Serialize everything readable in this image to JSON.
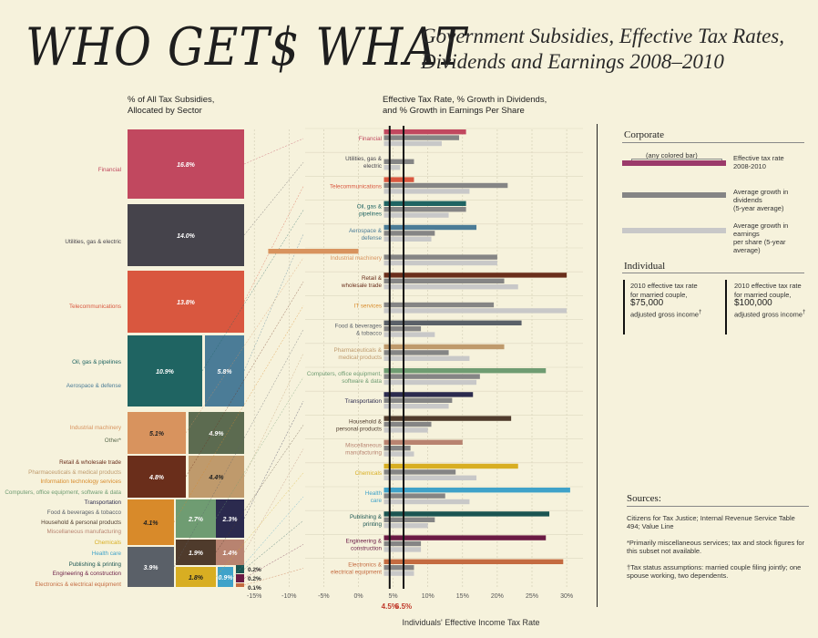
{
  "header": {
    "title": "WHO GET$ WHAT",
    "subtitle_line1": "Government Subsidies, Effective Tax Rates,",
    "subtitle_line2": "Dividends and Earnings 2008–2010"
  },
  "left_heading": {
    "line1": "% of All Tax Subsidies,",
    "line2": "Allocated by Sector"
  },
  "mid_heading": {
    "line1": "Effective Tax Rate, % Growth in Dividends,",
    "line2": "and % Growth in Earnings Per Share"
  },
  "colors": {
    "background": "#f6f2dc",
    "dividend_bar": "#858585",
    "earnings_bar": "#c8c8c8",
    "ref_line": "#111111"
  },
  "chart_data": [
    {
      "type": "treemap",
      "title": "% of All Tax Subsidies, Allocated by Sector",
      "cells": [
        {
          "sector": "Financial",
          "label": "Financial",
          "value": 16.8,
          "value_label": "16.8%",
          "color": "#c1485f"
        },
        {
          "sector": "Utilities, gas & electric",
          "label": "Utilities, gas & electric",
          "value": 14.0,
          "value_label": "14.0%",
          "color": "#45434b"
        },
        {
          "sector": "Telecommunications",
          "label": "Telecommunications",
          "value": 13.8,
          "value_label": "13.8%",
          "color": "#d9573f"
        },
        {
          "sector": "Oil, gas & pipelines",
          "label": "Oil, gas & pipelines",
          "value": 10.9,
          "value_label": "10.9%",
          "color": "#1f6462"
        },
        {
          "sector": "Aerospace & defense",
          "label": "Aerospace & defense",
          "value": 5.8,
          "value_label": "5.8%",
          "color": "#4b7c97"
        },
        {
          "sector": "Industrial machinery",
          "label": "Industrial machinery",
          "value": 5.1,
          "value_label": "5.1%",
          "color": "#d8935e"
        },
        {
          "sector": "Other*",
          "label": "Other*",
          "value": 4.9,
          "value_label": "4.9%",
          "color": "#5c6b50"
        },
        {
          "sector": "Retail & wholesale trade",
          "label": "Retail & wholesale trade",
          "value": 4.8,
          "value_label": "4.8%",
          "color": "#6a2e1b"
        },
        {
          "sector": "Pharmaceuticals & medical products",
          "label": "Pharmaceuticals & medical products",
          "value": 4.4,
          "value_label": "4.4%",
          "color": "#bf9a6c"
        },
        {
          "sector": "IT services",
          "label": "Information technology services",
          "value": 4.1,
          "value_label": "4.1%",
          "color": "#d88a2a"
        },
        {
          "sector": "Computers, office equipment, software & data",
          "label": "Computers, office equipment, software & data",
          "value": 2.7,
          "value_label": "2.7%",
          "color": "#6f9c72"
        },
        {
          "sector": "Transportation",
          "label": "Transportation",
          "value": 2.3,
          "value_label": "2.3%",
          "color": "#2b2a4e"
        },
        {
          "sector": "Food & beverages & tobacco",
          "label": "Food & beverages & tobacco",
          "value": 3.9,
          "value_label": "3.9%",
          "color": "#5a6068"
        },
        {
          "sector": "Household & personal products",
          "label": "Household & personal products",
          "value": 1.9,
          "value_label": "1.9%",
          "color": "#4f3b2c"
        },
        {
          "sector": "Miscellaneous manufacturing",
          "label": "Miscellaneous manufacturing",
          "value": 1.4,
          "value_label": "1.4%",
          "color": "#b88370"
        },
        {
          "sector": "Chemicals",
          "label": "Chemicals",
          "value": 1.8,
          "value_label": "1.8%",
          "color": "#d8ae22"
        },
        {
          "sector": "Health care",
          "label": "Health care",
          "value": 0.9,
          "value_label": "0.9%",
          "color": "#3fa2c9"
        },
        {
          "sector": "Publishing & printing",
          "label": "Publishing & printing",
          "value": 0.2,
          "value_label": "0.2%",
          "color": "#1b5552"
        },
        {
          "sector": "Engineering & construction",
          "label": "Engineering & construction",
          "value": 0.2,
          "value_label": "0.2%",
          "color": "#6a1a44"
        },
        {
          "sector": "Electronics & electrical equipment",
          "label": "Electronics & electrical equipment",
          "value": 0.1,
          "value_label": "0.1%",
          "color": "#c46b40"
        }
      ]
    },
    {
      "type": "bar",
      "orientation": "horizontal",
      "xlabel": "Individuals' Effective Income Tax Rate",
      "xlim": [
        -15,
        30
      ],
      "ticks": [
        "-15%",
        "-10%",
        "-5%",
        "0%",
        "5%",
        "10%",
        "15%",
        "20%",
        "25%",
        "30%"
      ],
      "reference_lines": [
        {
          "value": 4.5,
          "label": "4.5%",
          "color": "#c0392b"
        },
        {
          "value": 6.5,
          "label": "6.5%",
          "color": "#c0392b"
        }
      ],
      "series_names": [
        "Effective tax rate 2008-2010",
        "Average growth in dividends (5-year average)",
        "Average growth in earnings per share (5-year average)"
      ],
      "categories": [
        {
          "name": "Financial",
          "color": "#c1485f",
          "values": [
            15.5,
            14.5,
            12
          ]
        },
        {
          "name": "Utilities, gas & electric",
          "color": "#45434b",
          "values": [
            3.5,
            8,
            6
          ]
        },
        {
          "name": "Telecommunications",
          "color": "#d9573f",
          "values": [
            8,
            21.5,
            16
          ]
        },
        {
          "name": "Oil, gas & pipelines",
          "color": "#1f6462",
          "values": [
            15.5,
            15.5,
            13
          ]
        },
        {
          "name": "Aerospace & defense",
          "color": "#4b7c97",
          "values": [
            17,
            11,
            10.5
          ]
        },
        {
          "name": "Industrial machinery",
          "color": "#d8935e",
          "values": [
            -13,
            20,
            20
          ]
        },
        {
          "name": "Retail & wholesale trade",
          "color": "#6a2e1b",
          "values": [
            30,
            21,
            23
          ]
        },
        {
          "name": "IT services",
          "color": "#d88a2a",
          "values": [
            2.5,
            19.5,
            30
          ]
        },
        {
          "name": "Food & beverages & tobacco",
          "color": "#5a6068",
          "values": [
            23.5,
            9,
            11
          ]
        },
        {
          "name": "Pharmaceuticals & medical products",
          "color": "#bf9a6c",
          "values": [
            21,
            13,
            16
          ]
        },
        {
          "name": "Computers, office equipment, software & data",
          "color": "#6f9c72",
          "values": [
            27,
            17.5,
            17
          ]
        },
        {
          "name": "Transportation",
          "color": "#2b2a4e",
          "values": [
            16.5,
            13.5,
            13
          ]
        },
        {
          "name": "Household & personal products",
          "color": "#4f3b2c",
          "values": [
            22,
            10.5,
            10
          ]
        },
        {
          "name": "Miscellaneous manufacturing",
          "color": "#b88370",
          "values": [
            15,
            7.5,
            8
          ]
        },
        {
          "name": "Chemicals",
          "color": "#d8ae22",
          "values": [
            23,
            14,
            17
          ]
        },
        {
          "name": "Health care",
          "color": "#3fa2c9",
          "values": [
            30.5,
            12.5,
            16
          ]
        },
        {
          "name": "Publishing & printing",
          "color": "#1b5552",
          "values": [
            27.5,
            11,
            10
          ]
        },
        {
          "name": "Engineering & construction",
          "color": "#6a1a44",
          "values": [
            27,
            9,
            9
          ]
        },
        {
          "name": "Electronics & electrical equipment",
          "color": "#c46b40",
          "values": [
            29.5,
            8,
            8
          ]
        }
      ]
    }
  ],
  "row_labels": [
    [
      "Financial"
    ],
    [
      "Utilities, gas &",
      "electric"
    ],
    [
      "Telecommunications"
    ],
    [
      "Oil, gas &",
      "pipelines"
    ],
    [
      "Aerospace &",
      "defense"
    ],
    [
      "Industrial machinery"
    ],
    [
      "Retail &",
      "wholesale trade"
    ],
    [
      "IT services"
    ],
    [
      "Food & beverages",
      "& tobacco"
    ],
    [
      "Pharmaceuticals &",
      "medical products"
    ],
    [
      "Computers, office equipment,",
      "software & data"
    ],
    [
      "Transportation"
    ],
    [
      "Household &",
      "personal products"
    ],
    [
      "Miscellaneous",
      "manufacturing"
    ],
    [
      "Chemicals"
    ],
    [
      "Health",
      "care"
    ],
    [
      "Publishing &",
      "printing"
    ],
    [
      "Engineering &",
      "construction"
    ],
    [
      "Electronics &",
      "electrical equipment"
    ]
  ],
  "legend": {
    "corporate_title": "Corporate",
    "any_colored_bar": "(any colored bar)",
    "effective_tax_line1": "Effective tax rate",
    "effective_tax_line2": "2008-2010",
    "dividends_line1": "Average growth in dividends",
    "dividends_line2": "(5-year average)",
    "earnings_line1": "Average growth in earnings",
    "earnings_line2": "per share (5-year average)",
    "individual_title": "Individual",
    "ind1_line1": "2010 effective tax rate",
    "ind1_line2": "for married couple,",
    "ind1_amount": "$75,000",
    "ind1_line4": "adjusted gross income",
    "ind2_line1": "2010 effective tax rate",
    "ind2_line2": "for married couple,",
    "ind2_amount": "$100,000",
    "ind2_line4": "adjusted gross income",
    "dagger": "†"
  },
  "sources": {
    "title": "Sources:",
    "text": "Citizens for Tax Justice; Internal Revenue Service Table 494; Value Line",
    "note1": "*Primarily miscellaneous services; tax and stock figures for this subset not available.",
    "note2": "†Tax status assumptions: married couple filing jointly; one spouse working, two dependents."
  }
}
